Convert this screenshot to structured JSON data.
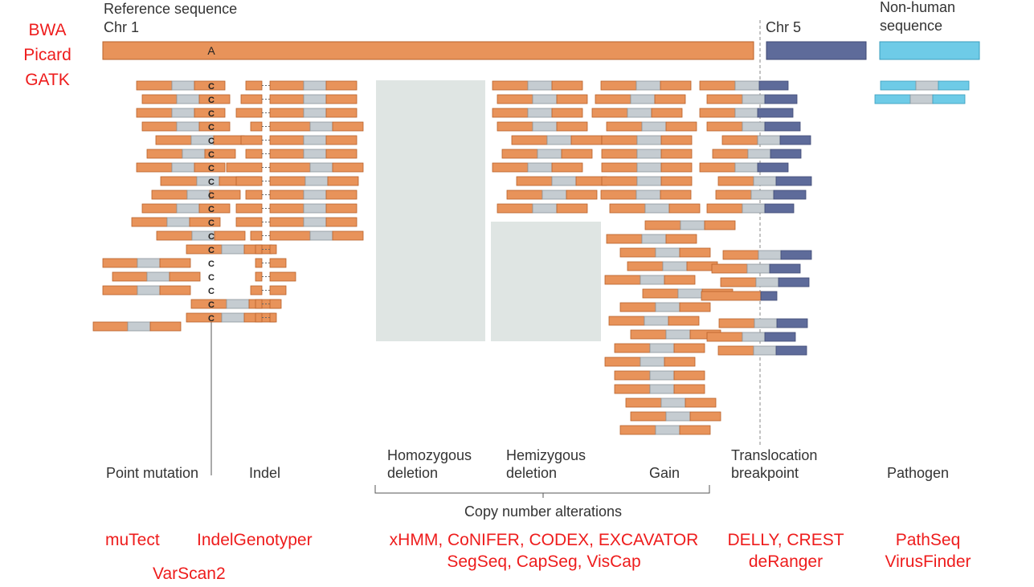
{
  "aligners": [
    "BWA",
    "Picard",
    "GATK"
  ],
  "reference": {
    "caption": "Reference sequence",
    "chr1_label": "Chr 1",
    "chr1_marker": "A",
    "chr5_label": "Chr 5",
    "nonhuman_label_line1": "Non-human",
    "nonhuman_label_line2": "sequence"
  },
  "read_marker": "C",
  "categories": {
    "point_mutation": "Point mutation",
    "indel": "Indel",
    "homozygous_line1": "Homozygous",
    "homozygous_line2": "deletion",
    "hemizygous_line1": "Hemizygous",
    "hemizygous_line2": "deletion",
    "gain": "Gain",
    "translocation_line1": "Translocation",
    "translocation_line2": "breakpoint",
    "pathogen": "Pathogen",
    "copy_number": "Copy number alterations"
  },
  "tools": {
    "point_mutation_1": "muTect",
    "point_mutation_2": "VarScan2",
    "indel": "IndelGenotyper",
    "cna_line1": "xHMM, CoNIFER, CODEX, EXCAVATOR",
    "cna_line2": "SegSeq, CapSeg, VisCap",
    "translocation_line1": "DELLY, CREST",
    "translocation_line2": "deRanger",
    "pathogen_line1": "PathSeq",
    "pathogen_line2": "VirusFinder"
  },
  "colors": {
    "read_orange": "#e8935a",
    "read_orange_stroke": "#b8612a",
    "read_gray": "#c5ccd1",
    "chr5_blue": "#5e6b9a",
    "pathogen_blue": "#6ecbe7",
    "deletion_fill": "#dfe5e3",
    "tool_red": "#ee1c1c",
    "label_gray": "#333333"
  }
}
